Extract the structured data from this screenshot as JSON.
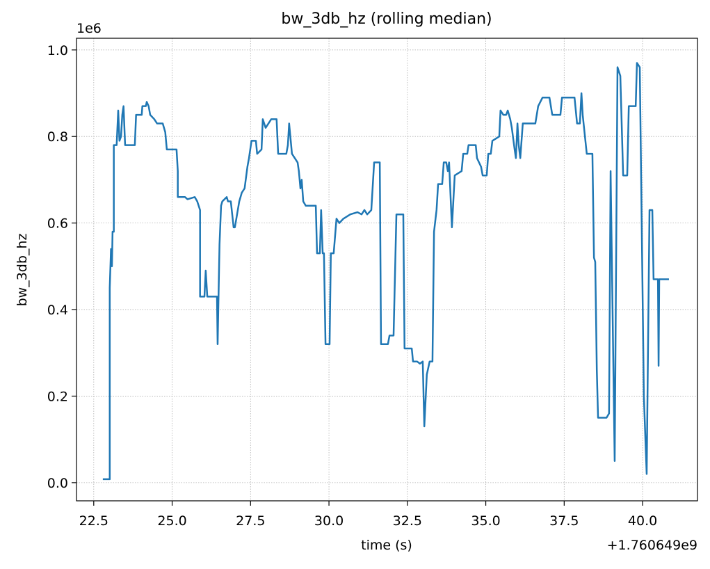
{
  "chart_data": {
    "type": "line",
    "title": "bw_3db_hz (rolling median)",
    "xlabel": "time (s)",
    "ylabel": "bw_3db_hz",
    "x_offset_label": "+1.760649e9",
    "y_offset_label": "1e6",
    "grid": true,
    "xlim": [
      21.95,
      41.75
    ],
    "ylim": [
      -0.042,
      1.027
    ],
    "xticks": [
      22.5,
      {
        "value": 25,
        "label": "25.0"
      },
      27.5,
      {
        "value": 30,
        "label": "30.0"
      },
      32.5,
      {
        "value": 35,
        "label": "35.0"
      },
      37.5,
      {
        "value": 40,
        "label": "40.0"
      }
    ],
    "yticks": [
      {
        "value": 0,
        "label": "0.0"
      },
      0.2,
      0.4,
      0.6,
      0.8,
      {
        "value": 1,
        "label": "1.0"
      }
    ],
    "x": [
      22.79,
      23.01,
      23.01,
      23.05,
      23.08,
      23.1,
      23.14,
      23.14,
      23.23,
      23.28,
      23.32,
      23.37,
      23.41,
      23.45,
      23.5,
      23.81,
      23.85,
      24.03,
      24.05,
      24.16,
      24.19,
      24.25,
      24.3,
      24.43,
      24.52,
      24.7,
      24.78,
      24.83,
      25.14,
      25.18,
      25.18,
      25.41,
      25.49,
      25.72,
      25.8,
      25.89,
      25.89,
      26.03,
      26.07,
      26.12,
      26.43,
      26.45,
      26.51,
      26.56,
      26.6,
      26.74,
      26.78,
      26.87,
      26.96,
      27.0,
      27.14,
      27.22,
      27.31,
      27.4,
      27.45,
      27.53,
      27.67,
      27.71,
      27.85,
      27.89,
      27.98,
      28.07,
      28.16,
      28.33,
      28.38,
      28.64,
      28.69,
      28.73,
      28.82,
      28.91,
      29.0,
      29.04,
      29.09,
      29.13,
      29.18,
      29.26,
      29.58,
      29.62,
      29.71,
      29.75,
      29.8,
      29.84,
      29.89,
      30.02,
      30.06,
      30.15,
      30.24,
      30.33,
      30.46,
      30.68,
      30.91,
      31.04,
      31.13,
      31.22,
      31.35,
      31.44,
      31.62,
      31.66,
      31.88,
      31.93,
      32.06,
      32.15,
      32.37,
      32.41,
      32.64,
      32.68,
      32.81,
      32.9,
      32.99,
      33.04,
      33.12,
      33.21,
      33.3,
      33.35,
      33.43,
      33.48,
      33.61,
      33.66,
      33.74,
      33.79,
      33.83,
      33.92,
      34.01,
      34.23,
      34.28,
      34.41,
      34.45,
      34.68,
      34.72,
      34.85,
      34.9,
      35.03,
      35.08,
      35.16,
      35.21,
      35.43,
      35.47,
      35.56,
      35.65,
      35.7,
      35.78,
      35.83,
      35.92,
      35.96,
      36.01,
      36.05,
      36.1,
      36.18,
      36.58,
      36.67,
      36.81,
      37.03,
      37.12,
      37.38,
      37.43,
      37.6,
      37.65,
      37.83,
      37.91,
      38.0,
      38.05,
      38.09,
      38.22,
      38.4,
      38.45,
      38.49,
      38.54,
      38.58,
      38.85,
      38.93,
      38.98,
      39.11,
      39.2,
      39.29,
      39.38,
      39.51,
      39.56,
      39.78,
      39.82,
      39.91,
      40.04,
      40.13,
      40.22,
      40.31,
      40.35,
      40.49,
      40.51,
      40.53,
      40.84
    ],
    "series": [
      {
        "name": "bw_3db_hz",
        "color": "#1f77b4",
        "values": [
          0.008,
          0.008,
          0.45,
          0.54,
          0.5,
          0.58,
          0.58,
          0.78,
          0.78,
          0.86,
          0.79,
          0.8,
          0.85,
          0.87,
          0.78,
          0.78,
          0.85,
          0.85,
          0.87,
          0.87,
          0.88,
          0.87,
          0.85,
          0.84,
          0.83,
          0.83,
          0.81,
          0.77,
          0.77,
          0.72,
          0.66,
          0.66,
          0.655,
          0.66,
          0.65,
          0.63,
          0.43,
          0.43,
          0.49,
          0.43,
          0.43,
          0.32,
          0.55,
          0.64,
          0.65,
          0.66,
          0.65,
          0.65,
          0.59,
          0.59,
          0.65,
          0.67,
          0.68,
          0.73,
          0.75,
          0.79,
          0.79,
          0.76,
          0.77,
          0.84,
          0.82,
          0.83,
          0.84,
          0.84,
          0.76,
          0.76,
          0.78,
          0.83,
          0.76,
          0.75,
          0.74,
          0.72,
          0.68,
          0.7,
          0.65,
          0.64,
          0.64,
          0.53,
          0.53,
          0.63,
          0.53,
          0.53,
          0.32,
          0.32,
          0.53,
          0.53,
          0.61,
          0.6,
          0.61,
          0.62,
          0.625,
          0.62,
          0.63,
          0.62,
          0.63,
          0.74,
          0.74,
          0.32,
          0.32,
          0.34,
          0.34,
          0.62,
          0.62,
          0.31,
          0.31,
          0.28,
          0.28,
          0.275,
          0.28,
          0.13,
          0.25,
          0.28,
          0.28,
          0.58,
          0.63,
          0.69,
          0.69,
          0.74,
          0.74,
          0.72,
          0.74,
          0.59,
          0.71,
          0.72,
          0.76,
          0.76,
          0.78,
          0.78,
          0.75,
          0.73,
          0.71,
          0.71,
          0.76,
          0.76,
          0.79,
          0.8,
          0.86,
          0.85,
          0.85,
          0.86,
          0.84,
          0.82,
          0.77,
          0.75,
          0.83,
          0.78,
          0.75,
          0.83,
          0.83,
          0.87,
          0.89,
          0.89,
          0.85,
          0.85,
          0.89,
          0.89,
          0.89,
          0.89,
          0.83,
          0.83,
          0.9,
          0.85,
          0.76,
          0.76,
          0.52,
          0.51,
          0.26,
          0.15,
          0.15,
          0.16,
          0.72,
          0.05,
          0.96,
          0.94,
          0.71,
          0.71,
          0.87,
          0.87,
          0.97,
          0.96,
          0.2,
          0.02,
          0.63,
          0.63,
          0.47,
          0.47,
          0.27,
          0.47,
          0.47
        ]
      }
    ]
  }
}
